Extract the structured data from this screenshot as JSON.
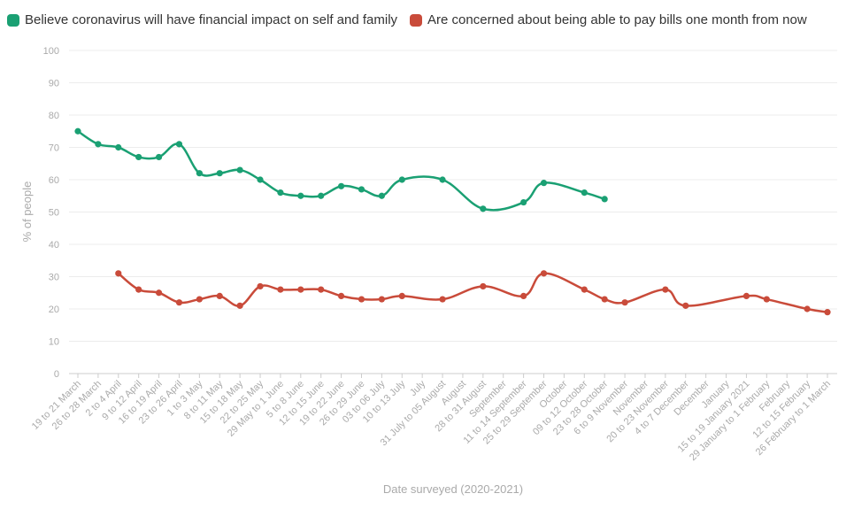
{
  "chart_data": {
    "type": "line",
    "xlabel": "Date surveyed (2020-2021)",
    "ylabel": "% of people",
    "ylim": [
      0,
      100
    ],
    "yticks": [
      0,
      10,
      20,
      30,
      40,
      50,
      60,
      70,
      80,
      90,
      100
    ],
    "grid": true,
    "legend_position": "top-left",
    "categories": [
      "19 to 21 March",
      "26 to 28 March",
      "2 to 4 April",
      "9 to 12 April",
      "16 to 19 April",
      "23 to 26 April",
      "1 to 3 May",
      "8 to 11 May",
      "15 to 18 May",
      "22 to 25 May",
      "29 May to 1 June",
      "5 to 8 June",
      "12 to 15 June",
      "19 to 22 June",
      "26 to 29 June",
      "03 to 06 July",
      "10 to 13 July",
      "July",
      "31 July to 05 August",
      "August",
      "28 to 31 August",
      "September",
      "11 to 14 September",
      "25 to 29 September",
      "October",
      "09 to 12 October",
      "23 to 28 October",
      "6 to 9 November",
      "November",
      "20 to 23 November",
      "4 to 7 December",
      "December",
      "January",
      "15 to 19 January 2021",
      "29 January to 1 February",
      "February",
      "12 to 15 February",
      "26 February to 1 March"
    ],
    "series": [
      {
        "name": "Believe coronavirus will have financial impact on self and family",
        "color": "#1aa073",
        "values": [
          75,
          71,
          70,
          67,
          67,
          71,
          62,
          62,
          63,
          60,
          56,
          55,
          55,
          58,
          57,
          55,
          60,
          null,
          60,
          null,
          51,
          null,
          53,
          59,
          null,
          56,
          54,
          null,
          null,
          null,
          null,
          null,
          null,
          null,
          null,
          null,
          null,
          null
        ]
      },
      {
        "name": "Are concerned about being able to pay bills one month from now",
        "color": "#c94b3a",
        "values": [
          null,
          null,
          31,
          26,
          25,
          22,
          23,
          24,
          21,
          27,
          26,
          26,
          26,
          24,
          23,
          23,
          24,
          null,
          23,
          null,
          27,
          null,
          24,
          31,
          null,
          26,
          23,
          22,
          null,
          26,
          21,
          null,
          null,
          24,
          23,
          null,
          20,
          19
        ]
      }
    ]
  }
}
